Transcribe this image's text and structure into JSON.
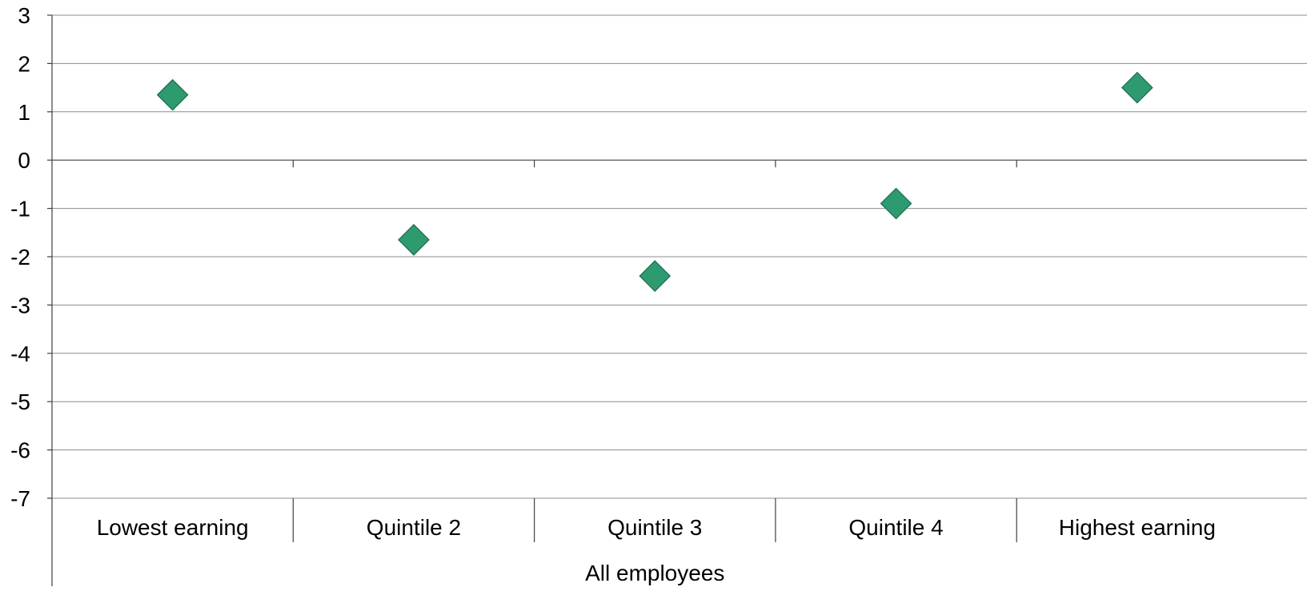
{
  "chart_data": {
    "type": "scatter",
    "categories": [
      "Lowest earning",
      "Quintile 2",
      "Quintile 3",
      "Quintile 4",
      "Highest earning"
    ],
    "group_label": "All employees",
    "series": [
      {
        "marker": "diamond",
        "color": "#2e9a70",
        "values": [
          1.35,
          -1.65,
          -2.4,
          -0.9,
          1.5
        ]
      }
    ],
    "title": "",
    "xlabel": "",
    "ylabel": "",
    "ylim": [
      -7,
      3
    ],
    "yticks": [
      "3",
      "2",
      "1",
      "0",
      "-1",
      "-2",
      "-3",
      "-4",
      "-5",
      "-6",
      "-7"
    ],
    "grid": true,
    "legend": "none"
  }
}
